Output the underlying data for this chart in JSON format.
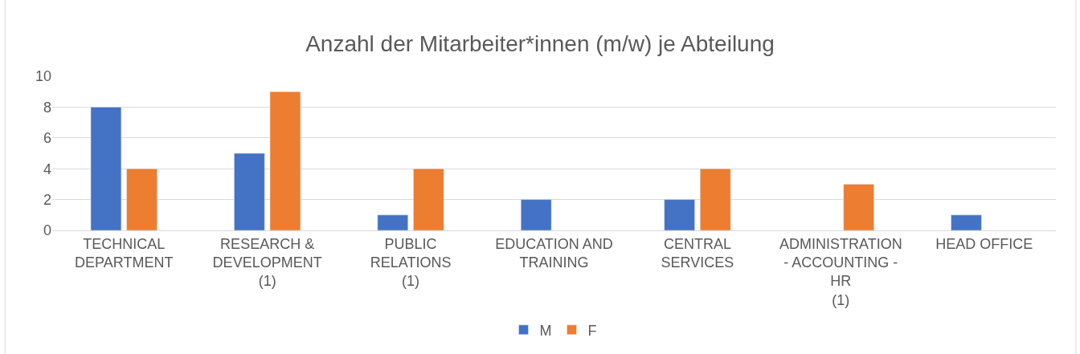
{
  "chart_data": {
    "type": "bar",
    "title": "Anzahl der Mitarbeiter*innen (m/w) je Abteilung",
    "categories": [
      "TECHNICAL\nDEPARTMENT",
      "RESEARCH &\nDEVELOPMENT\n(1)",
      "PUBLIC\nRELATIONS\n(1)",
      "EDUCATION AND\nTRAINING",
      "CENTRAL\nSERVICES",
      "ADMINISTRATION\n- ACCOUNTING -\nHR\n(1)",
      "HEAD OFFICE"
    ],
    "series": [
      {
        "name": "M",
        "color": "#4472c4",
        "values": [
          8,
          5,
          1,
          2,
          2,
          null,
          1
        ]
      },
      {
        "name": "F",
        "color": "#ed7d31",
        "values": [
          4,
          9,
          4,
          null,
          4,
          3,
          null
        ]
      }
    ],
    "ylim": [
      0,
      10
    ],
    "yticks": [
      0,
      2,
      4,
      6,
      8,
      10
    ],
    "grid": "y",
    "legend": "bottom"
  }
}
